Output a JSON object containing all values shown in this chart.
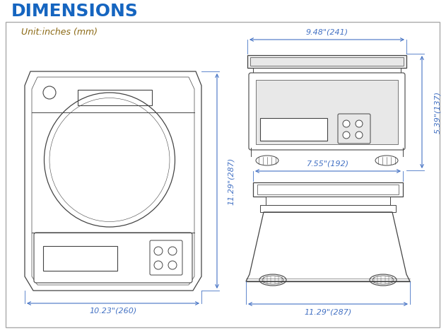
{
  "title": "DIMENSIONS",
  "title_color": "#1565C0",
  "title_fontsize": 18,
  "unit_text": "Unit:inches (mm)",
  "unit_color": "#8B6914",
  "unit_fontsize": 9,
  "background": "#ffffff",
  "border_color": "#aaaaaa",
  "line_color": "#444444",
  "dim_color": "#4472C4",
  "dim_fontsize": 8,
  "dims": {
    "front_width": "10.23\"(260)",
    "front_height": "11.29\"(287)",
    "top_width": "9.48\"(241)",
    "side_height": "5.39\"(137)",
    "side_width": "7.55\"(192)",
    "bottom_width": "11.29\"(287)"
  }
}
